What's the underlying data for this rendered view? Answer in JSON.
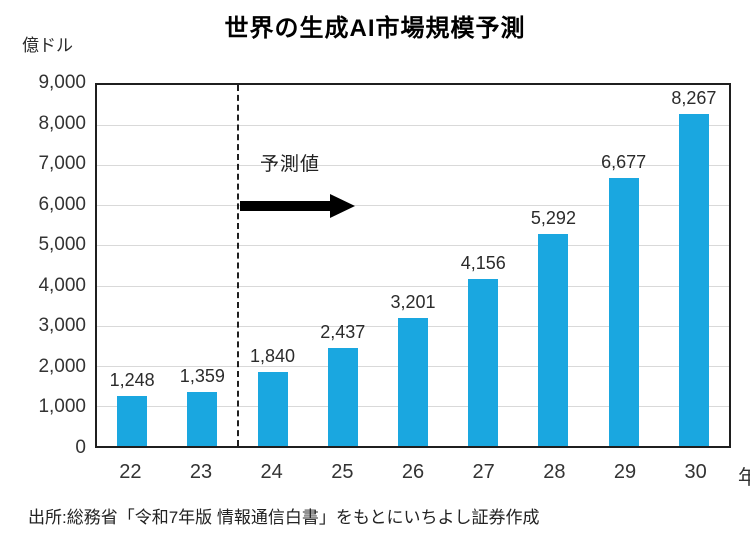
{
  "source": "出所:総務省「令和7年版 情報通信白書」をもとにいちよし証券作成",
  "chart_data": {
    "type": "bar",
    "title": "世界の生成AI市場規模予測",
    "xlabel": "年",
    "ylabel": "億ドル",
    "categories": [
      "22",
      "23",
      "24",
      "25",
      "26",
      "27",
      "28",
      "29",
      "30"
    ],
    "values": [
      1248,
      1359,
      1840,
      2437,
      3201,
      4156,
      5292,
      6677,
      8267
    ],
    "data_labels": [
      "1,248",
      "1,359",
      "1,840",
      "2,437",
      "3,201",
      "4,156",
      "5,292",
      "6,677",
      "8,267"
    ],
    "ylim": [
      0,
      9000
    ],
    "y_ticks": [
      0,
      1000,
      2000,
      3000,
      4000,
      5000,
      6000,
      7000,
      8000,
      9000
    ],
    "y_tick_labels": [
      "0",
      "1,000",
      "2,000",
      "3,000",
      "4,000",
      "5,000",
      "6,000",
      "7,000",
      "8,000",
      "9,000"
    ],
    "grid": true,
    "legend": false,
    "bar_color": "#1AA7E0",
    "gridline_color": "#d9d9d9",
    "annotation": "予測値",
    "forecast_divider_after_index": 1
  }
}
